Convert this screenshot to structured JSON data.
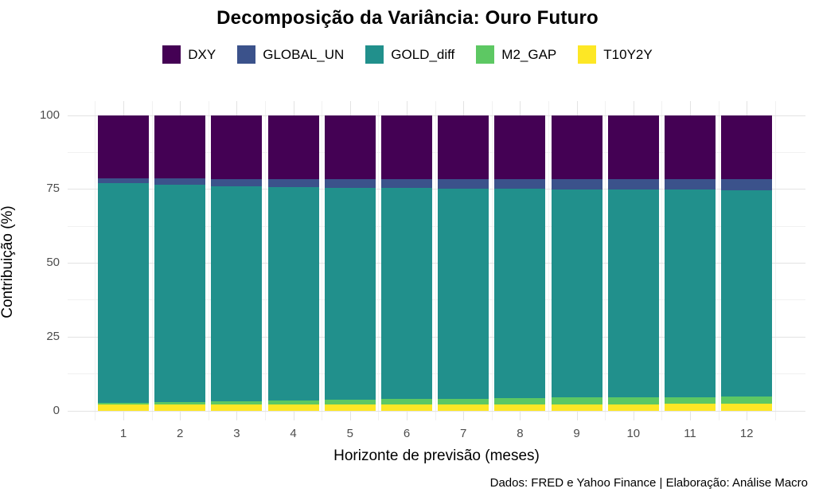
{
  "title": "Decomposição da Variância: Ouro Futuro",
  "caption": "Dados: FRED e Yahoo Finance | Elaboração: Análise Macro",
  "chart_data": {
    "type": "bar",
    "stacked": true,
    "title": "Decomposição da Variância: Ouro Futuro",
    "xlabel": "Horizonte de previsão (meses)",
    "ylabel": "Contribuição (%)",
    "categories": [
      "1",
      "2",
      "3",
      "4",
      "5",
      "6",
      "7",
      "8",
      "9",
      "10",
      "11",
      "12"
    ],
    "series": [
      {
        "name": "T10Y2Y",
        "color": "#FDE725",
        "values": [
          1.9,
          1.9,
          1.9,
          2.0,
          2.0,
          2.0,
          2.0,
          2.1,
          2.1,
          2.1,
          2.2,
          2.2
        ]
      },
      {
        "name": "M2_GAP",
        "color": "#5DC863",
        "values": [
          0.7,
          1.0,
          1.2,
          1.4,
          1.6,
          1.8,
          2.0,
          2.1,
          2.3,
          2.3,
          2.3,
          2.4
        ]
      },
      {
        "name": "GOLD_diff",
        "color": "#21908C",
        "values": [
          74.3,
          73.5,
          72.7,
          72.2,
          71.8,
          71.5,
          71.1,
          70.8,
          70.5,
          70.4,
          70.2,
          70.0
        ]
      },
      {
        "name": "GLOBAL_UN",
        "color": "#3B528B",
        "values": [
          1.8,
          2.1,
          2.5,
          2.7,
          2.8,
          2.9,
          3.1,
          3.2,
          3.3,
          3.4,
          3.5,
          3.6
        ]
      },
      {
        "name": "DXY",
        "color": "#440154",
        "values": [
          21.3,
          21.5,
          21.7,
          21.7,
          21.8,
          21.8,
          21.8,
          21.8,
          21.8,
          21.8,
          21.8,
          21.8
        ]
      }
    ],
    "legend": {
      "position": "top",
      "order": [
        "DXY",
        "GLOBAL_UN",
        "GOLD_diff",
        "M2_GAP",
        "T10Y2Y"
      ]
    },
    "y_ticks": [
      0,
      25,
      50,
      75,
      100
    ],
    "y_minor_ticks": [
      12.5,
      37.5,
      62.5,
      87.5
    ],
    "ylim": [
      0,
      100
    ],
    "grid": true
  }
}
